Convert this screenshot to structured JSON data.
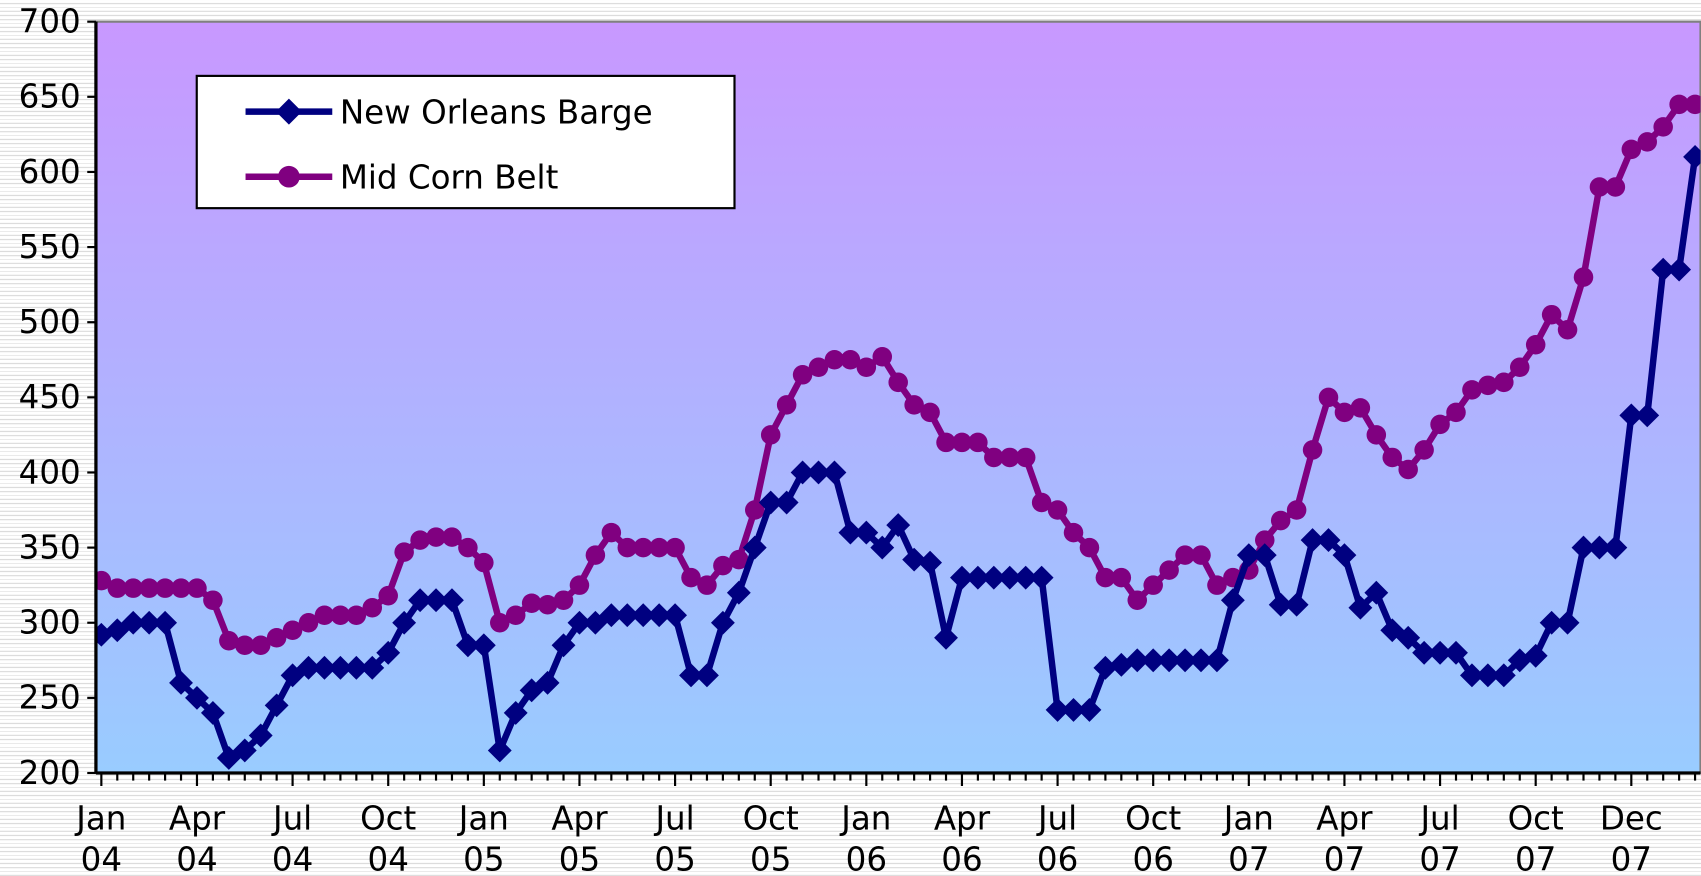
{
  "chart_data": {
    "type": "line",
    "categories": [
      "Jan 04",
      null,
      null,
      null,
      null,
      null,
      "Apr 04",
      null,
      null,
      null,
      null,
      null,
      "Jul 04",
      null,
      null,
      null,
      null,
      null,
      "Oct 04",
      null,
      null,
      null,
      null,
      null,
      "Jan 05",
      null,
      null,
      null,
      null,
      null,
      "Apr 05",
      null,
      null,
      null,
      null,
      null,
      "Jul 05",
      null,
      null,
      null,
      null,
      null,
      "Oct 05",
      null,
      null,
      null,
      null,
      null,
      "Jan 06",
      null,
      null,
      null,
      null,
      null,
      "Apr 06",
      null,
      null,
      null,
      null,
      null,
      "Jul 06",
      null,
      null,
      null,
      null,
      null,
      "Oct 06",
      null,
      null,
      null,
      null,
      null,
      "Jan 07",
      null,
      null,
      null,
      null,
      null,
      "Apr 07",
      null,
      null,
      null,
      null,
      null,
      "Jul 07",
      null,
      null,
      null,
      null,
      null,
      "Oct 07",
      null,
      null,
      null,
      null,
      null,
      "Dec 07",
      null,
      null,
      null,
      null
    ],
    "series": [
      {
        "name": "New Orleans Barge",
        "color": "#000080",
        "marker": "diamond",
        "values": [
          292,
          295,
          300,
          300,
          300,
          260,
          250,
          240,
          210,
          215,
          225,
          245,
          265,
          270,
          270,
          270,
          270,
          270,
          280,
          300,
          315,
          315,
          315,
          285,
          285,
          215,
          240,
          255,
          260,
          285,
          300,
          300,
          305,
          305,
          305,
          305,
          305,
          265,
          265,
          300,
          320,
          350,
          380,
          380,
          400,
          400,
          400,
          360,
          360,
          350,
          365,
          342,
          340,
          290,
          330,
          330,
          330,
          330,
          330,
          330,
          242,
          242,
          242,
          270,
          272,
          275,
          275,
          275,
          275,
          275,
          275,
          315,
          345,
          345,
          312,
          312,
          355,
          355,
          345,
          310,
          320,
          295,
          290,
          280,
          280,
          280,
          265,
          265,
          265,
          275,
          278,
          300,
          300,
          350,
          350,
          350,
          438,
          438,
          535,
          535,
          610
        ]
      },
      {
        "name": "Mid Corn Belt",
        "color": "#800080",
        "marker": "circle",
        "values": [
          328,
          323,
          323,
          323,
          323,
          323,
          323,
          315,
          288,
          285,
          285,
          290,
          295,
          300,
          305,
          305,
          305,
          310,
          318,
          347,
          355,
          357,
          357,
          350,
          340,
          300,
          305,
          313,
          312,
          315,
          325,
          345,
          360,
          350,
          350,
          350,
          350,
          330,
          325,
          338,
          342,
          375,
          425,
          445,
          465,
          470,
          475,
          475,
          470,
          477,
          460,
          445,
          440,
          420,
          420,
          420,
          410,
          410,
          410,
          380,
          375,
          360,
          350,
          330,
          330,
          315,
          325,
          335,
          345,
          345,
          325,
          330,
          335,
          355,
          368,
          375,
          415,
          450,
          440,
          443,
          425,
          410,
          402,
          415,
          432,
          440,
          455,
          458,
          460,
          470,
          485,
          505,
          495,
          530,
          590,
          590,
          615,
          620,
          630,
          645,
          645
        ]
      }
    ],
    "ylim": [
      200,
      700
    ],
    "yticks": [
      200,
      250,
      300,
      350,
      400,
      450,
      500,
      550,
      600,
      650,
      700
    ],
    "legend": "top-left",
    "grid": false
  }
}
